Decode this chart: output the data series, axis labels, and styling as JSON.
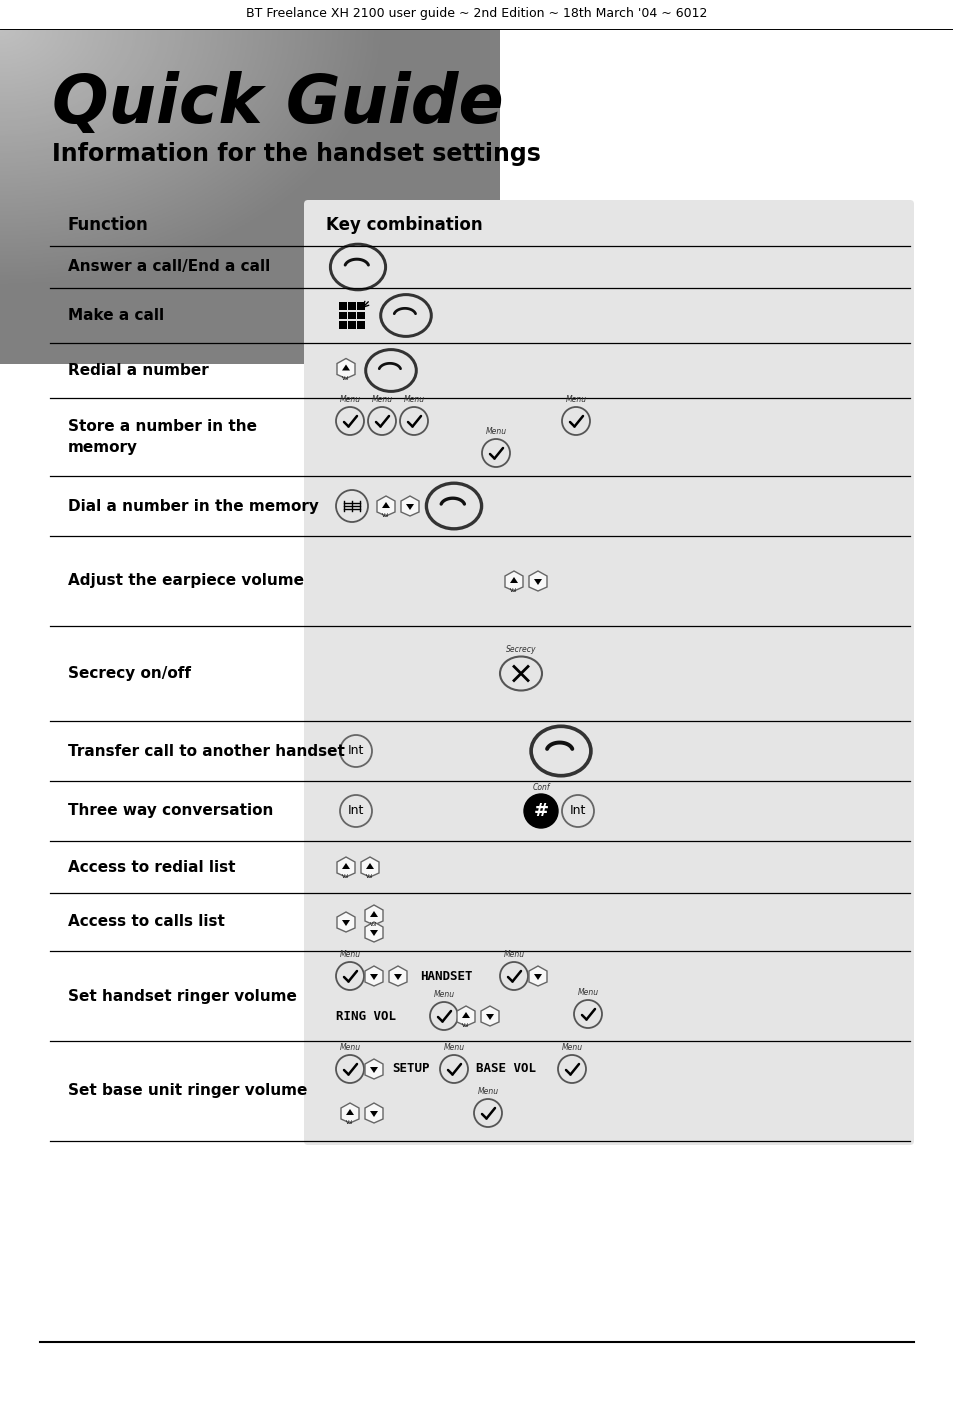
{
  "header_text": "BT Freelance XH 2100 user guide ~ 2nd Edition ~ 18th March '04 ~ 6012",
  "title": "Quick Guide",
  "subtitle": "Information for the handset settings",
  "col1_header": "Function",
  "col2_header": "Key combination",
  "rows": [
    {
      "function": "Answer a call/End a call",
      "key_desc": "call_button_lg"
    },
    {
      "function": "Make a call",
      "key_desc": "keypad_call"
    },
    {
      "function": "Redial a number",
      "key_desc": "vol_call"
    },
    {
      "function": "Store a number in the\nmemory",
      "key_desc": "menu_x5"
    },
    {
      "function": "Dial a number in the memory",
      "key_desc": "book_vol_call"
    },
    {
      "function": "Adjust the earpiece volume",
      "key_desc": "vol_ud"
    },
    {
      "function": "Secrecy on/off",
      "key_desc": "secrecy"
    },
    {
      "function": "Transfer call to another handset",
      "key_desc": "int_call_lg"
    },
    {
      "function": "Three way conversation",
      "key_desc": "int_conf_int"
    },
    {
      "function": "Access to redial list",
      "key_desc": "vol_vol"
    },
    {
      "function": "Access to calls list",
      "key_desc": "down_vol"
    },
    {
      "function": "Set handset ringer volume",
      "key_desc": "menu_handset_ring"
    },
    {
      "function": "Set base unit ringer volume",
      "key_desc": "menu_setup_base"
    }
  ],
  "bg_color": "#ffffff",
  "table_col2_bg": "#e5e5e5",
  "header_row_bg": "#d8d8d8"
}
